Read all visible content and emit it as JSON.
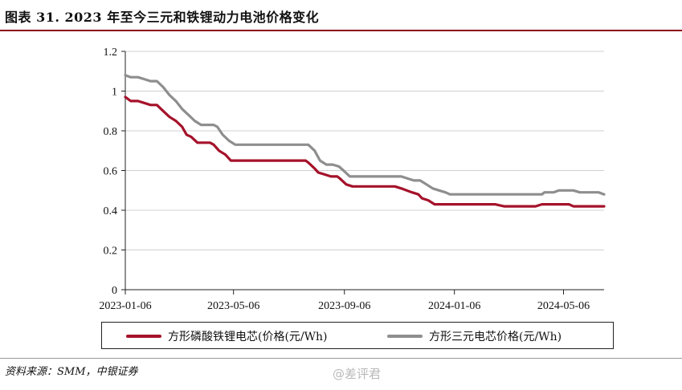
{
  "title": "图表 31. 2023 年至今三元和铁锂动力电池价格变化",
  "source": "资料来源：SMM，中银证券",
  "watermark": "@差评君",
  "colors": {
    "lfp": "#a5122a",
    "ncm": "#8e8e8e",
    "accent": "#8b0016"
  },
  "chart_data": {
    "type": "line",
    "title": "图表 31. 2023 年至今三元和铁锂动力电池价格变化",
    "xlabel": "",
    "ylabel": "",
    "ylim": [
      0,
      1.2
    ],
    "yticks": [
      "0",
      "0.2",
      "0.4",
      "0.6",
      "0.8",
      "1",
      "1.2"
    ],
    "xticks": [
      "2023-01-06",
      "2023-05-06",
      "2023-09-06",
      "2024-01-06",
      "2024-05-06"
    ],
    "xrange": [
      "2023-01-06",
      "2024-06-20"
    ],
    "grid": true,
    "legend_position": "bottom",
    "series": [
      {
        "name": "方形磷酸铁锂电芯(价格(元/Wh)",
        "color": "#a5122a",
        "points": [
          [
            "2023-01-06",
            0.97
          ],
          [
            "2023-01-12",
            0.95
          ],
          [
            "2023-01-20",
            0.95
          ],
          [
            "2023-01-27",
            0.94
          ],
          [
            "2023-02-03",
            0.93
          ],
          [
            "2023-02-10",
            0.93
          ],
          [
            "2023-02-17",
            0.9
          ],
          [
            "2023-02-24",
            0.87
          ],
          [
            "2023-03-03",
            0.85
          ],
          [
            "2023-03-10",
            0.82
          ],
          [
            "2023-03-15",
            0.78
          ],
          [
            "2023-03-20",
            0.77
          ],
          [
            "2023-03-27",
            0.74
          ],
          [
            "2023-04-03",
            0.74
          ],
          [
            "2023-04-10",
            0.74
          ],
          [
            "2023-04-14",
            0.73
          ],
          [
            "2023-04-20",
            0.7
          ],
          [
            "2023-04-27",
            0.68
          ],
          [
            "2023-05-03",
            0.65
          ],
          [
            "2023-05-15",
            0.65
          ],
          [
            "2023-06-01",
            0.65
          ],
          [
            "2023-06-20",
            0.65
          ],
          [
            "2023-07-10",
            0.65
          ],
          [
            "2023-07-25",
            0.65
          ],
          [
            "2023-07-28",
            0.64
          ],
          [
            "2023-08-04",
            0.61
          ],
          [
            "2023-08-08",
            0.59
          ],
          [
            "2023-08-15",
            0.58
          ],
          [
            "2023-08-22",
            0.57
          ],
          [
            "2023-08-29",
            0.57
          ],
          [
            "2023-09-01",
            0.56
          ],
          [
            "2023-09-08",
            0.53
          ],
          [
            "2023-09-15",
            0.52
          ],
          [
            "2023-10-01",
            0.52
          ],
          [
            "2023-10-20",
            0.52
          ],
          [
            "2023-11-01",
            0.52
          ],
          [
            "2023-11-08",
            0.51
          ],
          [
            "2023-11-20",
            0.49
          ],
          [
            "2023-11-27",
            0.48
          ],
          [
            "2023-12-01",
            0.46
          ],
          [
            "2023-12-08",
            0.45
          ],
          [
            "2023-12-15",
            0.43
          ],
          [
            "2024-01-06",
            0.43
          ],
          [
            "2024-02-01",
            0.43
          ],
          [
            "2024-02-20",
            0.43
          ],
          [
            "2024-03-01",
            0.42
          ],
          [
            "2024-03-20",
            0.42
          ],
          [
            "2024-04-05",
            0.42
          ],
          [
            "2024-04-12",
            0.43
          ],
          [
            "2024-05-01",
            0.43
          ],
          [
            "2024-05-12",
            0.43
          ],
          [
            "2024-05-17",
            0.42
          ],
          [
            "2024-06-01",
            0.42
          ],
          [
            "2024-06-20",
            0.42
          ]
        ]
      },
      {
        "name": "方形三元电芯价格(元/Wh)",
        "color": "#8e8e8e",
        "points": [
          [
            "2023-01-06",
            1.08
          ],
          [
            "2023-01-12",
            1.07
          ],
          [
            "2023-01-20",
            1.07
          ],
          [
            "2023-01-27",
            1.06
          ],
          [
            "2023-02-03",
            1.05
          ],
          [
            "2023-02-10",
            1.05
          ],
          [
            "2023-02-17",
            1.02
          ],
          [
            "2023-02-24",
            0.98
          ],
          [
            "2023-03-03",
            0.95
          ],
          [
            "2023-03-10",
            0.91
          ],
          [
            "2023-03-17",
            0.88
          ],
          [
            "2023-03-24",
            0.85
          ],
          [
            "2023-03-31",
            0.83
          ],
          [
            "2023-04-07",
            0.83
          ],
          [
            "2023-04-14",
            0.83
          ],
          [
            "2023-04-18",
            0.82
          ],
          [
            "2023-04-24",
            0.78
          ],
          [
            "2023-05-01",
            0.75
          ],
          [
            "2023-05-08",
            0.73
          ],
          [
            "2023-05-20",
            0.73
          ],
          [
            "2023-06-10",
            0.73
          ],
          [
            "2023-07-01",
            0.73
          ],
          [
            "2023-07-20",
            0.73
          ],
          [
            "2023-07-28",
            0.73
          ],
          [
            "2023-08-04",
            0.7
          ],
          [
            "2023-08-10",
            0.65
          ],
          [
            "2023-08-17",
            0.63
          ],
          [
            "2023-08-24",
            0.63
          ],
          [
            "2023-08-31",
            0.62
          ],
          [
            "2023-09-05",
            0.6
          ],
          [
            "2023-09-12",
            0.57
          ],
          [
            "2023-10-01",
            0.57
          ],
          [
            "2023-10-20",
            0.57
          ],
          [
            "2023-11-08",
            0.57
          ],
          [
            "2023-11-15",
            0.56
          ],
          [
            "2023-11-22",
            0.55
          ],
          [
            "2023-11-29",
            0.55
          ],
          [
            "2023-12-06",
            0.53
          ],
          [
            "2023-12-13",
            0.51
          ],
          [
            "2023-12-20",
            0.5
          ],
          [
            "2023-12-27",
            0.49
          ],
          [
            "2024-01-01",
            0.48
          ],
          [
            "2024-01-20",
            0.48
          ],
          [
            "2024-02-15",
            0.48
          ],
          [
            "2024-03-10",
            0.48
          ],
          [
            "2024-04-01",
            0.48
          ],
          [
            "2024-04-12",
            0.48
          ],
          [
            "2024-04-15",
            0.49
          ],
          [
            "2024-04-25",
            0.49
          ],
          [
            "2024-05-01",
            0.5
          ],
          [
            "2024-05-10",
            0.5
          ],
          [
            "2024-05-17",
            0.5
          ],
          [
            "2024-05-24",
            0.49
          ],
          [
            "2024-06-05",
            0.49
          ],
          [
            "2024-06-14",
            0.49
          ],
          [
            "2024-06-20",
            0.48
          ]
        ]
      }
    ]
  }
}
